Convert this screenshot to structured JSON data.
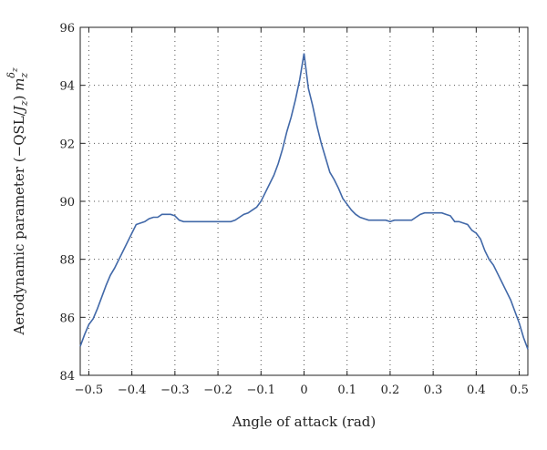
{
  "chart_data": {
    "type": "line",
    "title": "",
    "xlabel": "Angle of attack (rad)",
    "ylabel": {
      "prefix": "Aerodynamic parameter (−QSL/",
      "j": "J",
      "z1": "z",
      "mid": ") ",
      "m": "m",
      "z2": "z",
      "delta": "δ",
      "z3": "z"
    },
    "xlim": [
      -0.52,
      0.52
    ],
    "ylim": [
      84,
      96
    ],
    "xticks": [
      -0.5,
      -0.4,
      -0.3,
      -0.2,
      -0.1,
      0,
      0.1,
      0.2,
      0.3,
      0.4,
      0.5
    ],
    "xtick_labels": [
      "−0.5",
      "−0.4",
      "−0.3",
      "−0.2",
      "−0.1",
      "0",
      "0.1",
      "0.2",
      "0.3",
      "0.4",
      "0.5"
    ],
    "yticks": [
      84,
      86,
      88,
      90,
      92,
      94,
      96
    ],
    "ytick_labels": [
      "84",
      "86",
      "88",
      "90",
      "92",
      "94",
      "96"
    ],
    "grid": true,
    "color": "#4168a8",
    "series": [
      {
        "x": [
          -0.52,
          -0.51,
          -0.5,
          -0.49,
          -0.48,
          -0.47,
          -0.46,
          -0.45,
          -0.44,
          -0.43,
          -0.42,
          -0.41,
          -0.4,
          -0.39,
          -0.38,
          -0.37,
          -0.36,
          -0.35,
          -0.34,
          -0.33,
          -0.32,
          -0.31,
          -0.3,
          -0.29,
          -0.28,
          -0.27,
          -0.26,
          -0.25,
          -0.24,
          -0.23,
          -0.22,
          -0.21,
          -0.2,
          -0.19,
          -0.18,
          -0.17,
          -0.16,
          -0.15,
          -0.14,
          -0.13,
          -0.12,
          -0.11,
          -0.1,
          -0.09,
          -0.08,
          -0.07,
          -0.06,
          -0.05,
          -0.04,
          -0.03,
          -0.02,
          -0.01,
          0,
          0.01,
          0.02,
          0.03,
          0.04,
          0.05,
          0.06,
          0.07,
          0.08,
          0.09,
          0.1,
          0.11,
          0.12,
          0.13,
          0.14,
          0.15,
          0.16,
          0.17,
          0.18,
          0.19,
          0.2,
          0.21,
          0.22,
          0.23,
          0.24,
          0.25,
          0.26,
          0.27,
          0.28,
          0.29,
          0.3,
          0.31,
          0.32,
          0.33,
          0.34,
          0.35,
          0.36,
          0.37,
          0.38,
          0.39,
          0.4,
          0.41,
          0.42,
          0.43,
          0.44,
          0.45,
          0.46,
          0.47,
          0.48,
          0.49,
          0.5,
          0.51,
          0.52
        ],
        "y": [
          85.0,
          85.4,
          85.75,
          85.95,
          86.3,
          86.7,
          87.1,
          87.45,
          87.7,
          88.0,
          88.3,
          88.6,
          88.9,
          89.2,
          89.25,
          89.3,
          89.4,
          89.45,
          89.45,
          89.55,
          89.55,
          89.55,
          89.5,
          89.35,
          89.3,
          89.3,
          89.3,
          89.3,
          89.3,
          89.3,
          89.3,
          89.3,
          89.3,
          89.3,
          89.3,
          89.3,
          89.35,
          89.45,
          89.55,
          89.6,
          89.7,
          89.8,
          90.0,
          90.3,
          90.6,
          90.9,
          91.3,
          91.8,
          92.4,
          92.9,
          93.5,
          94.2,
          95.1,
          93.9,
          93.3,
          92.6,
          92.0,
          91.5,
          91.0,
          90.75,
          90.45,
          90.1,
          89.9,
          89.7,
          89.55,
          89.45,
          89.4,
          89.35,
          89.35,
          89.35,
          89.35,
          89.35,
          89.3,
          89.35,
          89.35,
          89.35,
          89.35,
          89.35,
          89.45,
          89.55,
          89.6,
          89.6,
          89.6,
          89.6,
          89.6,
          89.55,
          89.5,
          89.3,
          89.3,
          89.25,
          89.2,
          89.0,
          88.9,
          88.7,
          88.3,
          88.0,
          87.8,
          87.5,
          87.2,
          86.9,
          86.6,
          86.2,
          85.8,
          85.3,
          84.9
        ]
      }
    ]
  }
}
